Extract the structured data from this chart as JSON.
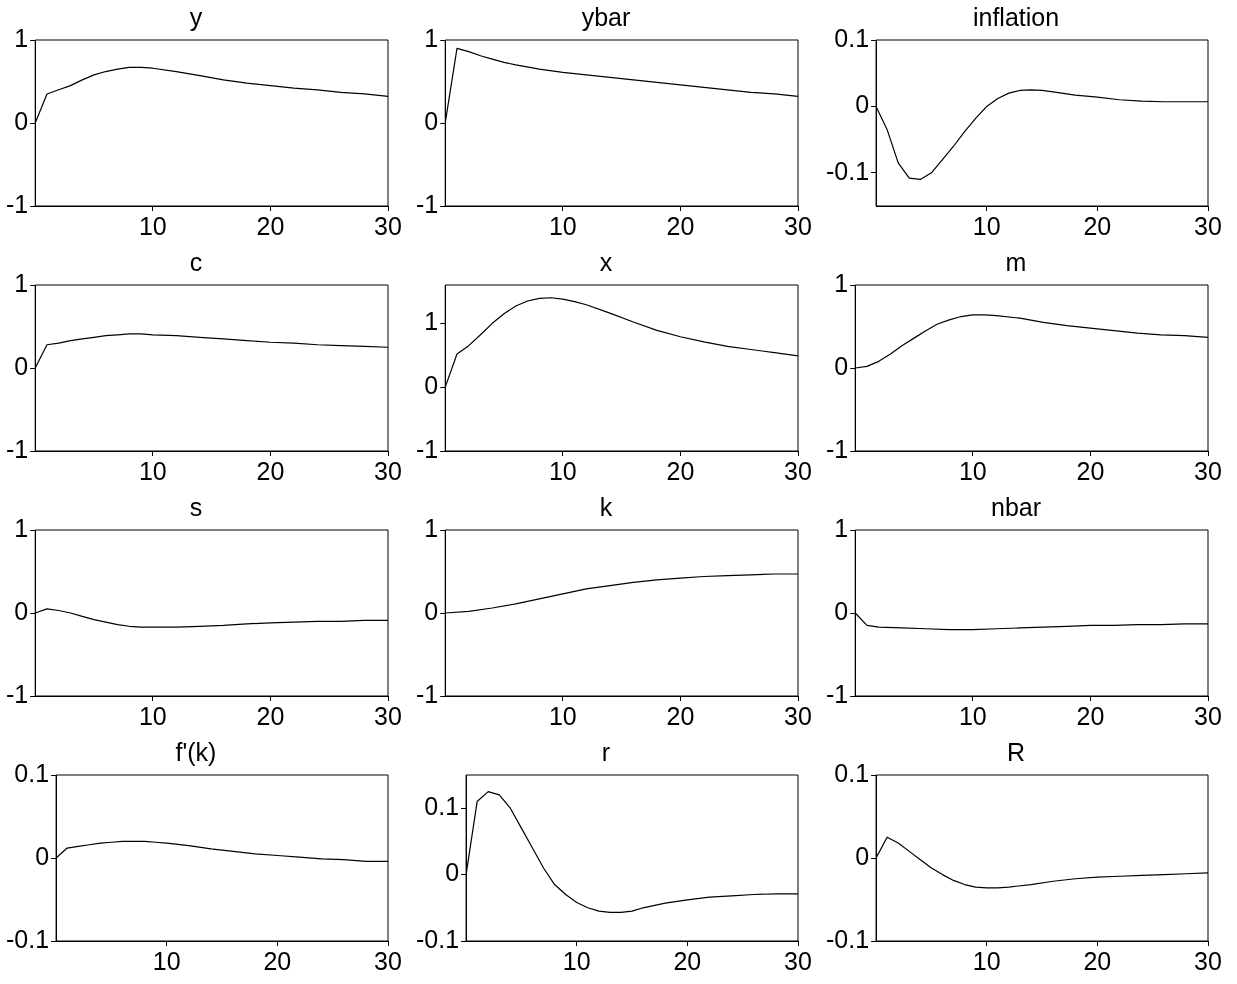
{
  "chart_data": [
    {
      "type": "line",
      "title": "y",
      "color": "#000000",
      "x": [
        0,
        1,
        2,
        3,
        4,
        5,
        6,
        7,
        8,
        9,
        10,
        12,
        14,
        16,
        18,
        20,
        22,
        24,
        26,
        28,
        30
      ],
      "values": [
        0,
        0.35,
        0.4,
        0.45,
        0.52,
        0.58,
        0.62,
        0.65,
        0.67,
        0.67,
        0.66,
        0.62,
        0.57,
        0.52,
        0.48,
        0.45,
        0.42,
        0.4,
        0.37,
        0.35,
        0.32
      ],
      "xlim": [
        0,
        30
      ],
      "xticks": [
        10,
        20,
        30
      ],
      "ylim": [
        -1,
        1
      ],
      "yticks": [
        -1,
        0,
        1
      ]
    },
    {
      "type": "line",
      "title": "ybar",
      "color": "#000000",
      "x": [
        0,
        1,
        2,
        3,
        4,
        5,
        6,
        8,
        10,
        12,
        14,
        16,
        18,
        20,
        22,
        24,
        26,
        28,
        30
      ],
      "values": [
        0,
        0.9,
        0.86,
        0.81,
        0.77,
        0.73,
        0.7,
        0.65,
        0.61,
        0.58,
        0.55,
        0.52,
        0.49,
        0.46,
        0.43,
        0.4,
        0.37,
        0.35,
        0.32
      ],
      "xlim": [
        0,
        30
      ],
      "xticks": [
        10,
        20,
        30
      ],
      "ylim": [
        -1,
        1
      ],
      "yticks": [
        -1,
        0,
        1
      ]
    },
    {
      "type": "line",
      "title": "inflation",
      "color": "#000000",
      "x": [
        0,
        1,
        2,
        3,
        4,
        5,
        6,
        7,
        8,
        9,
        10,
        11,
        12,
        13,
        14,
        15,
        16,
        18,
        20,
        22,
        24,
        26,
        28,
        30
      ],
      "values": [
        0,
        -0.035,
        -0.085,
        -0.108,
        -0.11,
        -0.1,
        -0.08,
        -0.06,
        -0.038,
        -0.018,
        0,
        0.012,
        0.02,
        0.024,
        0.025,
        0.024,
        0.022,
        0.017,
        0.014,
        0.01,
        0.008,
        0.007,
        0.007,
        0.007
      ],
      "xlim": [
        0,
        30
      ],
      "xticks": [
        10,
        20,
        30
      ],
      "ylim": [
        -0.15,
        0.1
      ],
      "yticks": [
        -0.1,
        0,
        0.1
      ]
    },
    {
      "type": "line",
      "title": "c",
      "color": "#000000",
      "x": [
        0,
        1,
        2,
        3,
        4,
        5,
        6,
        7,
        8,
        9,
        10,
        12,
        14,
        16,
        18,
        20,
        22,
        24,
        26,
        28,
        30
      ],
      "values": [
        0,
        0.28,
        0.3,
        0.33,
        0.35,
        0.37,
        0.39,
        0.4,
        0.41,
        0.41,
        0.4,
        0.39,
        0.37,
        0.35,
        0.33,
        0.31,
        0.3,
        0.28,
        0.27,
        0.26,
        0.25
      ],
      "xlim": [
        0,
        30
      ],
      "xticks": [
        10,
        20,
        30
      ],
      "ylim": [
        -1,
        1
      ],
      "yticks": [
        -1,
        0,
        1
      ]
    },
    {
      "type": "line",
      "title": "x",
      "color": "#000000",
      "x": [
        0,
        1,
        2,
        3,
        4,
        5,
        6,
        7,
        8,
        9,
        10,
        11,
        12,
        14,
        16,
        18,
        20,
        22,
        24,
        26,
        28,
        30
      ],
      "values": [
        0,
        0.52,
        0.65,
        0.82,
        1.0,
        1.15,
        1.27,
        1.35,
        1.39,
        1.4,
        1.38,
        1.34,
        1.29,
        1.16,
        1.02,
        0.89,
        0.79,
        0.71,
        0.64,
        0.59,
        0.54,
        0.49
      ],
      "xlim": [
        0,
        30
      ],
      "xticks": [
        10,
        20,
        30
      ],
      "ylim": [
        -1,
        1.6
      ],
      "yticks": [
        -1,
        0,
        1
      ]
    },
    {
      "type": "line",
      "title": "m",
      "color": "#000000",
      "x": [
        0,
        1,
        2,
        3,
        4,
        5,
        6,
        7,
        8,
        9,
        10,
        11,
        12,
        14,
        16,
        18,
        20,
        22,
        24,
        26,
        28,
        30
      ],
      "values": [
        0,
        0.02,
        0.08,
        0.17,
        0.27,
        0.36,
        0.45,
        0.53,
        0.58,
        0.62,
        0.64,
        0.64,
        0.63,
        0.6,
        0.55,
        0.51,
        0.48,
        0.45,
        0.42,
        0.4,
        0.39,
        0.37
      ],
      "xlim": [
        0,
        30
      ],
      "xticks": [
        10,
        20,
        30
      ],
      "ylim": [
        -1,
        1
      ],
      "yticks": [
        -1,
        0,
        1
      ]
    },
    {
      "type": "line",
      "title": "s",
      "color": "#000000",
      "x": [
        0,
        1,
        2,
        3,
        4,
        5,
        6,
        7,
        8,
        9,
        10,
        12,
        14,
        16,
        18,
        20,
        22,
        24,
        26,
        28,
        30
      ],
      "values": [
        0,
        0.05,
        0.03,
        0,
        -0.04,
        -0.08,
        -0.11,
        -0.14,
        -0.16,
        -0.17,
        -0.17,
        -0.17,
        -0.16,
        -0.15,
        -0.13,
        -0.12,
        -0.11,
        -0.1,
        -0.1,
        -0.09,
        -0.09
      ],
      "xlim": [
        0,
        30
      ],
      "xticks": [
        10,
        20,
        30
      ],
      "ylim": [
        -1,
        1
      ],
      "yticks": [
        -1,
        0,
        1
      ]
    },
    {
      "type": "line",
      "title": "k",
      "color": "#000000",
      "x": [
        0,
        2,
        4,
        6,
        8,
        10,
        12,
        14,
        16,
        18,
        20,
        22,
        24,
        26,
        28,
        30
      ],
      "values": [
        0,
        0.02,
        0.06,
        0.11,
        0.17,
        0.23,
        0.29,
        0.33,
        0.37,
        0.4,
        0.42,
        0.44,
        0.45,
        0.46,
        0.47,
        0.47
      ],
      "xlim": [
        0,
        30
      ],
      "xticks": [
        10,
        20,
        30
      ],
      "ylim": [
        -1,
        1
      ],
      "yticks": [
        -1,
        0,
        1
      ]
    },
    {
      "type": "line",
      "title": "nbar",
      "color": "#000000",
      "x": [
        0,
        1,
        2,
        4,
        6,
        8,
        10,
        12,
        14,
        16,
        18,
        20,
        22,
        24,
        26,
        28,
        30
      ],
      "values": [
        0,
        -0.15,
        -0.17,
        -0.18,
        -0.19,
        -0.2,
        -0.2,
        -0.19,
        -0.18,
        -0.17,
        -0.16,
        -0.15,
        -0.15,
        -0.14,
        -0.14,
        -0.13,
        -0.13
      ],
      "xlim": [
        0,
        30
      ],
      "xticks": [
        10,
        20,
        30
      ],
      "ylim": [
        -1,
        1
      ],
      "yticks": [
        -1,
        0,
        1
      ]
    },
    {
      "type": "line",
      "title": "f'(k)",
      "color": "#000000",
      "x": [
        0,
        1,
        2,
        3,
        4,
        5,
        6,
        7,
        8,
        9,
        10,
        12,
        14,
        16,
        18,
        20,
        22,
        24,
        26,
        28,
        30
      ],
      "values": [
        0,
        0.012,
        0.014,
        0.016,
        0.018,
        0.019,
        0.02,
        0.02,
        0.02,
        0.019,
        0.018,
        0.015,
        0.011,
        0.008,
        0.005,
        0.003,
        0.001,
        -0.001,
        -0.002,
        -0.004,
        -0.004
      ],
      "xlim": [
        0,
        30
      ],
      "xticks": [
        10,
        20,
        30
      ],
      "ylim": [
        -0.1,
        0.1
      ],
      "yticks": [
        -0.1,
        0,
        0.1
      ]
    },
    {
      "type": "line",
      "title": "r",
      "color": "#000000",
      "x": [
        0,
        1,
        2,
        3,
        4,
        5,
        6,
        7,
        8,
        9,
        10,
        11,
        12,
        13,
        14,
        15,
        16,
        18,
        20,
        22,
        24,
        26,
        28,
        30
      ],
      "values": [
        0,
        0.11,
        0.125,
        0.12,
        0.1,
        0.07,
        0.04,
        0.01,
        -0.015,
        -0.03,
        -0.042,
        -0.05,
        -0.055,
        -0.057,
        -0.057,
        -0.055,
        -0.05,
        -0.043,
        -0.038,
        -0.034,
        -0.032,
        -0.03,
        -0.029,
        -0.029
      ],
      "xlim": [
        0,
        30
      ],
      "xticks": [
        10,
        20,
        30
      ],
      "ylim": [
        -0.1,
        0.15
      ],
      "yticks": [
        -0.1,
        0,
        0.1
      ]
    },
    {
      "type": "line",
      "title": "R",
      "color": "#000000",
      "x": [
        0,
        1,
        2,
        3,
        4,
        5,
        6,
        7,
        8,
        9,
        10,
        11,
        12,
        14,
        16,
        18,
        20,
        22,
        24,
        26,
        28,
        30
      ],
      "values": [
        0,
        0.025,
        0.018,
        0.008,
        -0.002,
        -0.012,
        -0.02,
        -0.027,
        -0.032,
        -0.035,
        -0.036,
        -0.036,
        -0.035,
        -0.032,
        -0.028,
        -0.025,
        -0.023,
        -0.022,
        -0.021,
        -0.02,
        -0.019,
        -0.018
      ],
      "xlim": [
        0,
        30
      ],
      "xticks": [
        10,
        20,
        30
      ],
      "ylim": [
        -0.1,
        0.1
      ],
      "yticks": [
        -0.1,
        0,
        0.1
      ]
    }
  ]
}
